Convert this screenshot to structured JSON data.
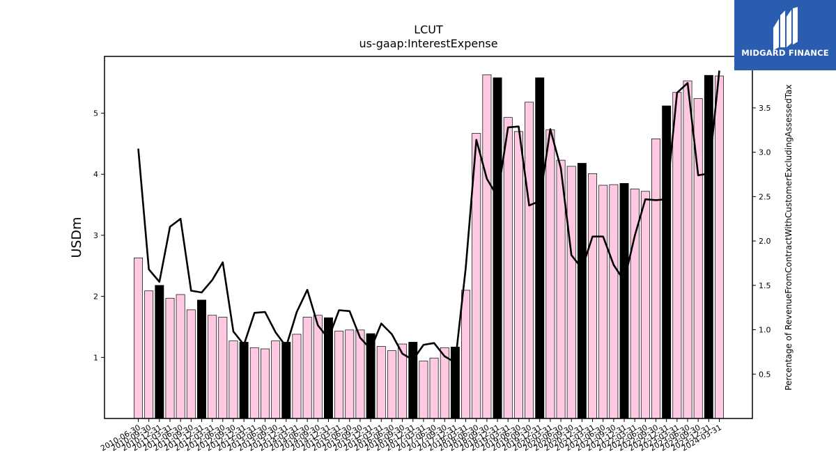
{
  "chart_data": {
    "type": "bar",
    "title": "LCUT",
    "subtitle": "us-gaap:InterestExpense",
    "ylabel": "USDm",
    "y2label": "Percentage of RevenueFromContractWithCustomerExcludingAssessedTax",
    "ylim": [
      0,
      5.93
    ],
    "y2lim": [
      0,
      4.08
    ],
    "yticks": [
      1,
      2,
      3,
      4,
      5
    ],
    "y2ticks": [
      0.5,
      1.0,
      1.5,
      2.0,
      2.5,
      3.0,
      3.5
    ],
    "x_tick_labels": [
      "2010-06-30",
      "2010-09-30",
      "2010-12-31",
      "2011-03-31",
      "2011-06-30",
      "2011-09-30",
      "2011-12-31",
      "2012-03-31",
      "2012-06-30",
      "2012-09-30",
      "2012-12-31",
      "2013-03-31",
      "2013-06-30",
      "2013-09-30",
      "2013-12-31",
      "2014-03-31",
      "2014-06-30",
      "2014-09-30",
      "2014-12-31",
      "2015-03-31",
      "2015-06-30",
      "2015-09-30",
      "2015-12-31",
      "2016-03-31",
      "2016-06-30",
      "2016-09-30",
      "2016-12-31",
      "2017-03-31",
      "2017-06-30",
      "2017-09-30",
      "2017-12-31",
      "2018-03-31",
      "2018-06-30",
      "2018-09-30",
      "2018-12-31",
      "2019-03-31",
      "2019-06-30",
      "2019-09-30",
      "2019-12-31",
      "2020-03-31",
      "2020-06-30",
      "2020-09-30",
      "2020-12-31",
      "2021-03-31",
      "2021-06-30",
      "2021-09-30",
      "2021-12-31",
      "2022-03-31",
      "2022-06-30",
      "2022-09-30",
      "2022-12-31",
      "2023-03-31",
      "2023-06-30",
      "2023-09-30",
      "2023-12-31",
      "2024-03-31"
    ],
    "series": [
      {
        "type": "bar",
        "axis": "left",
        "values": [
          2.63,
          2.09,
          2.18,
          1.97,
          2.03,
          1.78,
          1.94,
          1.69,
          1.66,
          1.27,
          1.25,
          1.16,
          1.14,
          1.27,
          1.25,
          1.38,
          1.66,
          1.69,
          1.65,
          1.43,
          1.45,
          1.45,
          1.39,
          1.18,
          1.11,
          1.22,
          1.25,
          0.94,
          0.99,
          1.16,
          1.17,
          2.1,
          4.67,
          5.63,
          5.58,
          4.93,
          4.7,
          5.18,
          5.58,
          4.73,
          4.23,
          4.13,
          4.18,
          4.01,
          3.82,
          3.83,
          3.85,
          3.76,
          3.72,
          4.58,
          5.12,
          5.34,
          5.53,
          5.24,
          5.62,
          5.61
        ],
        "fill_normal": "#ffc9e3",
        "fill_highlight": "#000000",
        "highlight": [
          false,
          false,
          true,
          false,
          false,
          false,
          true,
          false,
          false,
          false,
          true,
          false,
          false,
          false,
          true,
          false,
          false,
          false,
          true,
          false,
          false,
          false,
          true,
          false,
          false,
          false,
          true,
          false,
          false,
          false,
          true,
          false,
          false,
          false,
          true,
          false,
          false,
          false,
          true,
          false,
          false,
          false,
          true,
          false,
          false,
          false,
          true,
          false,
          false,
          false,
          true,
          false,
          false,
          false,
          true,
          false
        ]
      },
      {
        "type": "line",
        "axis": "right",
        "color": "#000000",
        "values": [
          3.04,
          1.68,
          1.54,
          2.16,
          2.25,
          1.44,
          1.42,
          1.56,
          1.76,
          0.98,
          0.83,
          1.19,
          1.2,
          0.97,
          0.81,
          1.2,
          1.45,
          1.05,
          0.9,
          1.22,
          1.21,
          0.91,
          0.78,
          1.07,
          0.95,
          0.73,
          0.66,
          0.83,
          0.85,
          0.7,
          0.63,
          1.7,
          3.14,
          2.7,
          2.5,
          3.28,
          3.29,
          2.4,
          2.45,
          3.26,
          2.82,
          1.84,
          1.69,
          2.05,
          2.05,
          1.73,
          1.55,
          2.06,
          2.47,
          2.46,
          2.47,
          3.67,
          3.78,
          2.74,
          2.76,
          3.92
        ]
      }
    ]
  },
  "logo": {
    "text": "MIDGARD FINANCE"
  }
}
